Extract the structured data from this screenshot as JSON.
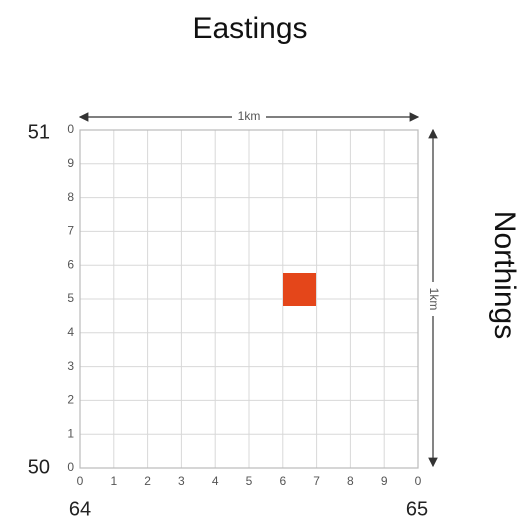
{
  "title": "Eastings",
  "side_label": "Northings",
  "scale_labels": {
    "top": "1km",
    "right": "1km"
  },
  "corners": {
    "north_top": "51",
    "north_bottom": "50",
    "east_left": "64",
    "east_right": "65"
  },
  "x_labels": [
    "0",
    "1",
    "2",
    "3",
    "4",
    "5",
    "6",
    "7",
    "8",
    "9",
    "0"
  ],
  "y_labels": [
    "0",
    "9",
    "8",
    "7",
    "6",
    "5",
    "4",
    "3",
    "2",
    "1",
    "0"
  ]
}
